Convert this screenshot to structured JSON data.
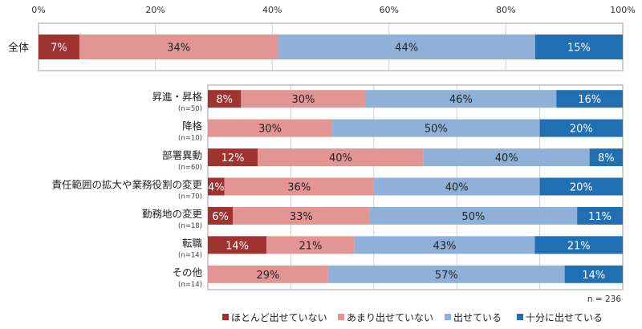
{
  "chart_data": [
    {
      "type": "bar",
      "orientation": "horizontal",
      "stacked": true,
      "xlim": [
        0,
        100
      ],
      "x_ticks": [
        "0%",
        "20%",
        "40%",
        "60%",
        "80%",
        "100%"
      ],
      "grid": true,
      "categories": [
        "全体"
      ],
      "category_sub": [
        ""
      ],
      "series": [
        {
          "name": "ほとんど出せていない",
          "values": [
            7
          ],
          "color": "#9e3330",
          "label_color": "#ffffff"
        },
        {
          "name": "あまり出せていない",
          "values": [
            34
          ],
          "color": "#e29593",
          "label_color": "#222222"
        },
        {
          "name": "出せている",
          "values": [
            44
          ],
          "color": "#8fb1d9",
          "label_color": "#222222"
        },
        {
          "name": "十分に出せている",
          "values": [
            15
          ],
          "color": "#1f6fb2",
          "label_color": "#ffffff"
        }
      ]
    },
    {
      "type": "bar",
      "orientation": "horizontal",
      "stacked": true,
      "xlim": [
        0,
        100
      ],
      "grid": true,
      "categories": [
        "昇進・昇格",
        "降格",
        "部署異動",
        "責任範囲の拡大や業務役割の変更",
        "勤務地の変更",
        "転職",
        "その他"
      ],
      "category_sub": [
        "(n=50)",
        "(n=10)",
        "(n=60)",
        "(n=70)",
        "(n=18)",
        "(n=14)",
        "(n=14)"
      ],
      "series": [
        {
          "name": "ほとんど出せていない",
          "values": [
            8,
            0,
            12,
            4,
            6,
            14,
            0
          ],
          "color": "#9e3330",
          "label_color": "#ffffff"
        },
        {
          "name": "あまり出せていない",
          "values": [
            30,
            30,
            40,
            36,
            33,
            21,
            29
          ],
          "color": "#e29593",
          "label_color": "#222222"
        },
        {
          "name": "出せている",
          "values": [
            46,
            50,
            40,
            40,
            50,
            43,
            57
          ],
          "color": "#8fb1d9",
          "label_color": "#222222"
        },
        {
          "name": "十分に出せている",
          "values": [
            16,
            20,
            8,
            20,
            11,
            21,
            14
          ],
          "color": "#1f6fb2",
          "label_color": "#ffffff"
        }
      ],
      "annotation": "n = 236",
      "legend_placement": "bottom"
    }
  ]
}
